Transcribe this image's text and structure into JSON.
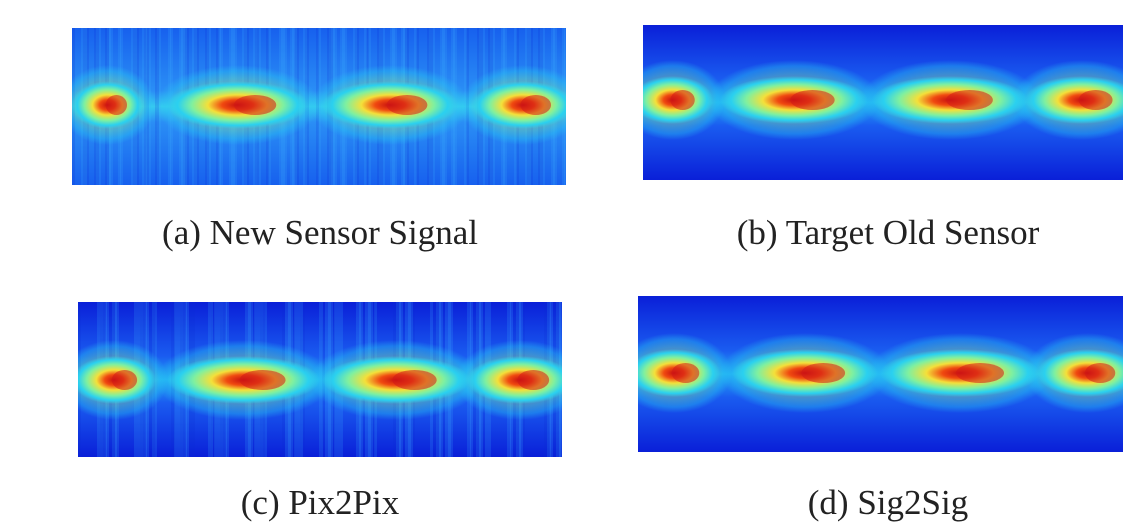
{
  "figure": {
    "captions": [
      "(a) New Sensor Signal",
      "(b) Target Old Sensor",
      "(c) Pix2Pix",
      "(d) Sig2Sig"
    ]
  }
}
